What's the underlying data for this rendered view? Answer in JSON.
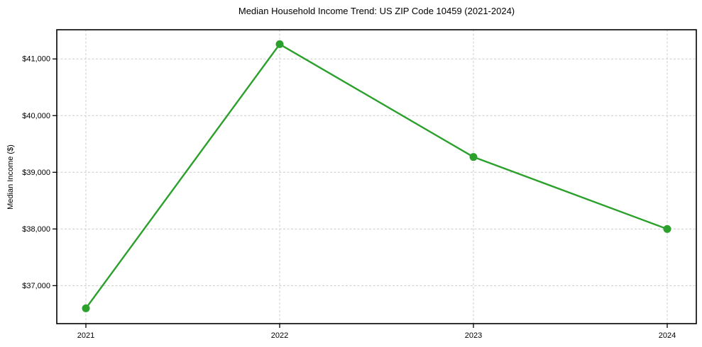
{
  "chart_data": {
    "type": "line",
    "title": "Median Household Income Trend: US ZIP Code 10459 (2021-2024)",
    "xlabel": "",
    "ylabel": "Median Income ($)",
    "categories": [
      "2021",
      "2022",
      "2023",
      "2024"
    ],
    "series": [
      {
        "name": "Median Household Income",
        "values": [
          36600,
          41260,
          39270,
          38000
        ]
      }
    ],
    "ylim": [
      36330,
      41515
    ],
    "yticks": [
      37000,
      38000,
      39000,
      40000,
      41000
    ],
    "ytick_labels": [
      "$37,000",
      "$38,000",
      "$39,000",
      "$40,000",
      "$41,000"
    ],
    "grid": true,
    "grid_style": "dashed",
    "legend_position": "none",
    "line_color": "#2ca02c",
    "marker": "circle",
    "marker_color": "#2ca02c",
    "background_color": "#ffffff",
    "axis_frame_color": "#000000",
    "grid_color": "#cccccc",
    "text_color": "#000000"
  }
}
